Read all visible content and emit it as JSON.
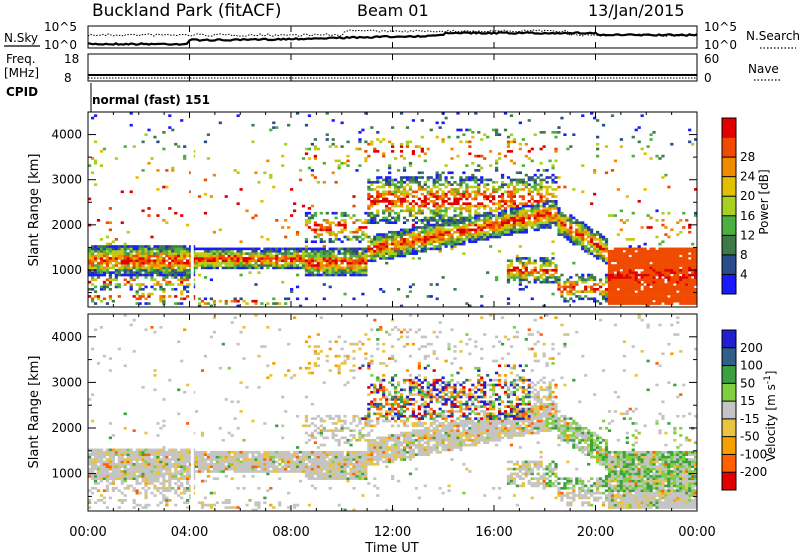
{
  "header": {
    "station": "Buckland Park (fitACF)",
    "beam": "Beam 01",
    "date": "13/Jan/2015"
  },
  "noise_panel": {
    "left_label": "N.Sky",
    "right_label": "N.Search",
    "left_ticks": [
      "10^5",
      "10^0"
    ],
    "right_ticks": [
      "10^5",
      "10^0"
    ]
  },
  "freq_panel": {
    "left_label_1": "Freq.",
    "left_label_2": "[MHz]",
    "right_label": "Nave",
    "left_ticks": [
      "18",
      "8"
    ],
    "right_ticks": [
      "60",
      "0"
    ]
  },
  "cpid": {
    "label": "CPID",
    "value": "normal (fast) 151"
  },
  "colors": {
    "power": [
      "#1a1aff",
      "#2a4a8c",
      "#3d7a4a",
      "#4cb040",
      "#a8d020",
      "#e0c000",
      "#f08a00",
      "#f04a00",
      "#e00000"
    ],
    "velocity": [
      "#e00000",
      "#ff6000",
      "#f5a000",
      "#e8c440",
      "#c4c4c4",
      "#7fd040",
      "#3aa040",
      "#30608a",
      "#2020d0"
    ]
  },
  "chart_data": [
    {
      "type": "heatmap",
      "quantity": "Power",
      "ylabel": "Slant Range [km]",
      "colorbar_label": "Power [dB]",
      "colorbar_ticks": [
        "4",
        "8",
        "12",
        "16",
        "20",
        "24",
        "28"
      ],
      "ylim": [
        180,
        4500
      ],
      "y_ticks": [
        "1000",
        "2000",
        "3000",
        "4000"
      ],
      "x_ticks": [
        "00:00",
        "04:00",
        "08:00",
        "12:00",
        "16:00",
        "20:00",
        "00:00"
      ],
      "xlabel": "Time UT"
    },
    {
      "type": "heatmap",
      "quantity": "Velocity",
      "ylabel": "Slant Range [km]",
      "colorbar_label": "Velocity [m s^-1]",
      "colorbar_ticks": [
        "-200",
        "-100",
        "-50",
        "-15",
        "15",
        "50",
        "100",
        "200"
      ],
      "ylim": [
        180,
        4500
      ],
      "y_ticks": [
        "1000",
        "2000",
        "3000",
        "4000"
      ],
      "x_ticks": [
        "00:00",
        "04:00",
        "08:00",
        "12:00",
        "16:00",
        "20:00",
        "00:00"
      ],
      "xlabel": "Time UT"
    }
  ]
}
